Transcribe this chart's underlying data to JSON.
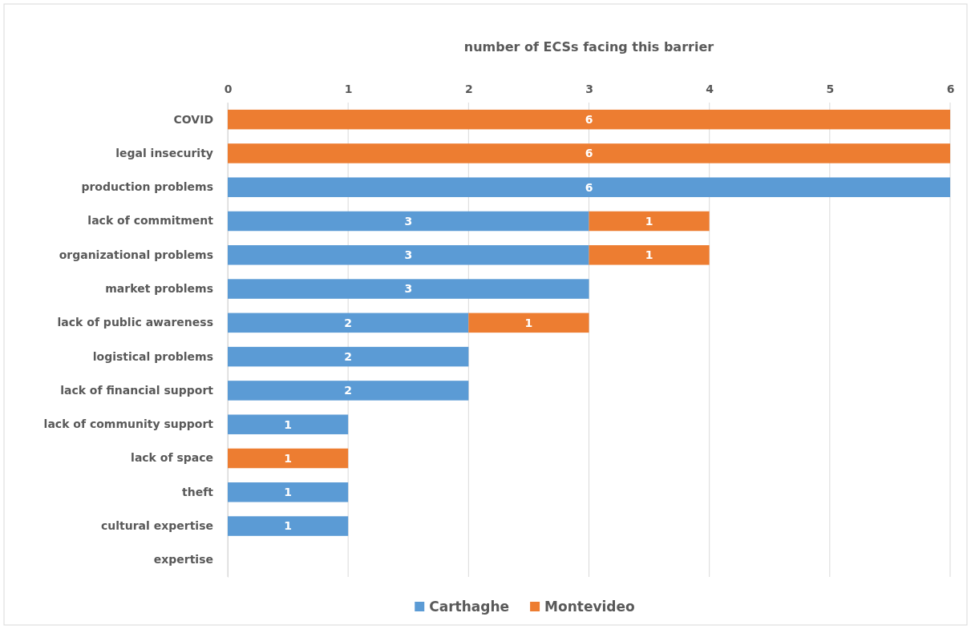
{
  "chart_data": {
    "type": "bar",
    "orientation": "horizontal",
    "stacked": true,
    "xlabel": "number of ECSs facing this barrier",
    "categories": [
      "COVID",
      "legal insecurity",
      "production problems",
      "lack of commitment",
      "organizational problems",
      "market problems",
      "lack of public awareness",
      "logistical problems",
      "lack of financial support",
      "lack of community support",
      "lack of space",
      "theft",
      "cultural expertise",
      "expertise"
    ],
    "series": [
      {
        "name": "Carthaghe",
        "color": "#5b9bd5",
        "values": [
          null,
          null,
          6,
          3,
          3,
          3,
          2,
          2,
          2,
          1,
          null,
          1,
          1,
          null
        ]
      },
      {
        "name": "Montevideo",
        "color": "#ed7d31",
        "values": [
          6,
          6,
          null,
          1,
          1,
          null,
          1,
          null,
          null,
          null,
          1,
          null,
          null,
          null
        ]
      }
    ],
    "xlim": [
      0,
      6
    ],
    "xticks": [
      0,
      1,
      2,
      3,
      4,
      5,
      6
    ],
    "grid": "x",
    "legend": "bottom",
    "data_labels": true
  }
}
